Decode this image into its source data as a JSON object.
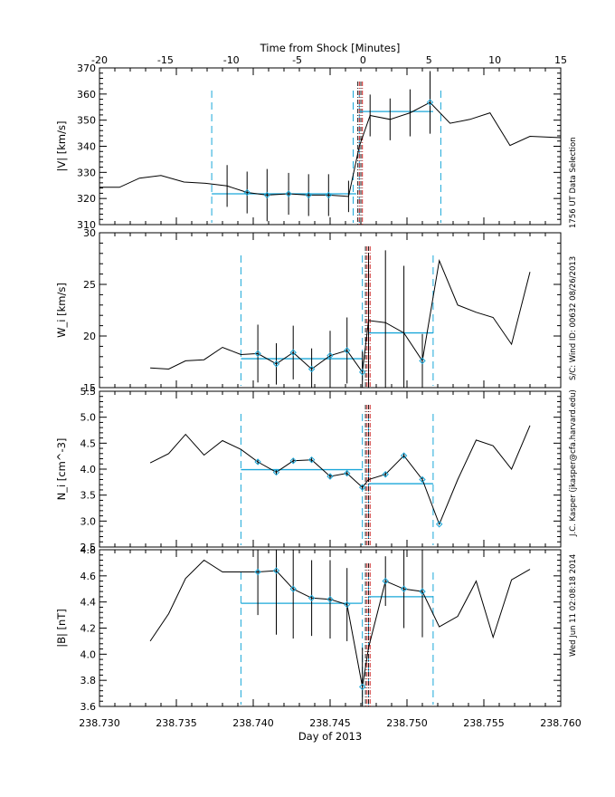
{
  "chart_data": {
    "type": "line",
    "top_axis": {
      "label": "Time from Shock [Minutes]",
      "range": [
        -20,
        15
      ],
      "ticks": [
        -20,
        -15,
        -10,
        -5,
        0,
        5,
        10,
        15
      ]
    },
    "bottom_axis": {
      "label": "Day of 2013",
      "range": [
        238.73,
        238.76
      ],
      "ticks": [
        "238.730",
        "238.735",
        "238.740",
        "238.745",
        "238.750",
        "238.755",
        "238.760"
      ]
    },
    "side_annotations": [
      "1756 UT Data Selection",
      "S/C: Wind ID: 00632 08/26/2013",
      "J.C. Kasper (jkasper@cfa.harvard.edu)",
      "Wed Jun 11 02:08:18 2014"
    ],
    "colors": {
      "data": "#000000",
      "average": "#1aa7d9",
      "window": "#1aa7d9",
      "shock": "#cc2222",
      "shock_alt": "#222222"
    },
    "panels": [
      {
        "ylabel": "|V| [km/s]",
        "ylim": [
          310,
          370
        ],
        "yticks": [
          "310",
          "320",
          "330",
          "340",
          "350",
          "360",
          "370"
        ],
        "line_x": [
          238.73,
          238.7313,
          238.7326,
          238.734,
          238.7355,
          238.7369,
          238.7383,
          238.7396,
          238.7409,
          238.7423,
          238.7436,
          238.7449,
          238.7462,
          238.7469,
          238.7476,
          238.7489,
          238.7502,
          238.7515,
          238.7528,
          238.7541,
          238.7554,
          238.7567,
          238.758,
          238.76
        ],
        "line_y": [
          324.3,
          324.3,
          327.8,
          328.8,
          326.3,
          325.8,
          324.8,
          322.3,
          321.3,
          321.8,
          321.3,
          321.3,
          320.8,
          340.0,
          351.8,
          350.3,
          352.8,
          356.8,
          348.8,
          350.3,
          352.8,
          340.3,
          343.8,
          343.3
        ],
        "err_x": [
          238.7383,
          238.7396,
          238.7409,
          238.7423,
          238.7436,
          238.7449,
          238.7462,
          238.7476,
          238.7489,
          238.7502,
          238.7515
        ],
        "err_y": [
          324.8,
          322.3,
          321.3,
          321.8,
          321.3,
          321.3,
          320.8,
          351.8,
          350.3,
          352.8,
          356.8
        ],
        "err_size": [
          8,
          8,
          10,
          8,
          8,
          8,
          6,
          8,
          8,
          9,
          12
        ],
        "markers_x": [
          238.7396,
          238.7409,
          238.7423,
          238.7436,
          238.7449,
          238.7515
        ],
        "markers_y": [
          322.3,
          321.3,
          321.8,
          321.3,
          321.3,
          356.8
        ],
        "avg_pre": {
          "x0": 238.7373,
          "x1": 238.7467,
          "y": 321.8
        },
        "avg_post": {
          "x0": 238.7469,
          "x1": 238.7517,
          "y": 353.3
        },
        "window_lines": [
          238.7373,
          238.7465,
          238.7469,
          238.7522
        ],
        "shock_lines": [
          238.7468,
          238.7469,
          238.747,
          238.7471
        ]
      },
      {
        "ylabel": "W_i [km/s]",
        "ylim": [
          15,
          30
        ],
        "yticks": [
          "15",
          "20",
          "25",
          "30"
        ],
        "line_x": [
          238.7333,
          238.7345,
          238.7356,
          238.7368,
          238.738,
          238.7392,
          238.7403,
          238.7415,
          238.7426,
          238.7438,
          238.745,
          238.7461,
          238.7471,
          238.7475,
          238.7486,
          238.7498,
          238.751,
          238.7521,
          238.7533,
          238.7545,
          238.7556,
          238.7568,
          238.758
        ],
        "line_y": [
          16.9,
          16.8,
          17.6,
          17.7,
          18.9,
          18.2,
          18.3,
          17.3,
          18.4,
          16.8,
          18.1,
          18.6,
          16.5,
          21.5,
          21.3,
          20.3,
          17.6,
          27.3,
          23.0,
          22.3,
          21.8,
          19.2,
          26.2
        ],
        "err_x": [
          238.7403,
          238.7415,
          238.7426,
          238.7438,
          238.745,
          238.7461,
          238.7471,
          238.7475,
          238.7486,
          238.7498,
          238.751
        ],
        "err_y": [
          18.3,
          17.3,
          18.4,
          16.8,
          18.1,
          18.6,
          16.5,
          21.5,
          21.3,
          20.3,
          17.6
        ],
        "err_size": [
          2.8,
          2.0,
          2.6,
          2.0,
          2.4,
          3.2,
          2.0,
          6.5,
          7.0,
          6.5,
          2.6
        ],
        "markers_x": [
          238.7403,
          238.7415,
          238.7426,
          238.7438,
          238.745,
          238.7461,
          238.7471,
          238.751
        ],
        "markers_y": [
          18.3,
          17.3,
          18.4,
          16.8,
          18.1,
          18.6,
          16.5,
          17.6
        ],
        "avg_pre": {
          "x0": 238.7392,
          "x1": 238.7471,
          "y": 17.8
        },
        "avg_post": {
          "x0": 238.7475,
          "x1": 238.7517,
          "y": 20.3
        },
        "window_lines": [
          238.7392,
          238.7471,
          238.7475,
          238.7517
        ],
        "shock_lines": [
          238.7473,
          238.7474,
          238.7475,
          238.7476
        ]
      },
      {
        "ylabel": "N_i [cm^-3]",
        "ylim": [
          2.5,
          5.5
        ],
        "yticks": [
          "2.5",
          "3.0",
          "3.5",
          "4.0",
          "4.5",
          "5.0",
          "5.5"
        ],
        "line_x": [
          238.7333,
          238.7345,
          238.7356,
          238.7368,
          238.738,
          238.7392,
          238.7403,
          238.7415,
          238.7426,
          238.7438,
          238.745,
          238.7461,
          238.7471,
          238.7475,
          238.7486,
          238.7498,
          238.751,
          238.7521,
          238.7533,
          238.7545,
          238.7556,
          238.7568,
          238.758
        ],
        "line_y": [
          4.12,
          4.3,
          4.67,
          4.27,
          4.55,
          4.38,
          4.14,
          3.94,
          4.16,
          4.18,
          3.86,
          3.92,
          3.65,
          3.8,
          3.9,
          4.26,
          3.8,
          2.94,
          3.8,
          4.56,
          4.45,
          4.0,
          4.84
        ],
        "err_x": [
          238.7403,
          238.7415,
          238.7426,
          238.7438,
          238.745,
          238.7461,
          238.7471,
          238.7475,
          238.7486,
          238.7498,
          238.751
        ],
        "err_y": [
          4.14,
          3.94,
          4.16,
          4.18,
          3.86,
          3.92,
          3.65,
          3.8,
          3.9,
          4.26,
          3.8
        ],
        "err_size": [
          0.05,
          0.04,
          0.04,
          0.04,
          0.04,
          0.04,
          0.04,
          0.04,
          0.04,
          0.04,
          0.04
        ],
        "markers_x": [
          238.7403,
          238.7415,
          238.7426,
          238.7438,
          238.745,
          238.7461,
          238.7471,
          238.7486,
          238.7498,
          238.751,
          238.7521
        ],
        "markers_y": [
          4.14,
          3.94,
          4.16,
          4.18,
          3.86,
          3.92,
          3.65,
          3.9,
          4.26,
          3.8,
          2.94
        ],
        "avg_pre": {
          "x0": 238.7392,
          "x1": 238.7471,
          "y": 3.99
        },
        "avg_post": {
          "x0": 238.7475,
          "x1": 238.7517,
          "y": 3.72
        },
        "window_lines": [
          238.7392,
          238.7471,
          238.7475,
          238.7517
        ],
        "shock_lines": [
          238.7473,
          238.7474,
          238.7475,
          238.7476
        ]
      },
      {
        "ylabel": "|B| [nT]",
        "ylim": [
          3.6,
          4.8
        ],
        "yticks": [
          "3.6",
          "3.8",
          "4.0",
          "4.2",
          "4.4",
          "4.6",
          "4.8"
        ],
        "line_x": [
          238.7333,
          238.7345,
          238.7356,
          238.7368,
          238.738,
          238.7392,
          238.7403,
          238.7415,
          238.7426,
          238.7438,
          238.745,
          238.7461,
          238.7471,
          238.7475,
          238.7486,
          238.7498,
          238.751,
          238.7521,
          238.7533,
          238.7545,
          238.7556,
          238.7568,
          238.758
        ],
        "line_y": [
          4.1,
          4.31,
          4.58,
          4.72,
          4.63,
          4.63,
          4.63,
          4.64,
          4.5,
          4.43,
          4.42,
          4.38,
          3.75,
          4.05,
          4.56,
          4.5,
          4.48,
          4.21,
          4.29,
          4.56,
          4.13,
          4.57,
          4.65
        ],
        "err_x": [
          238.7403,
          238.7415,
          238.7426,
          238.7438,
          238.745,
          238.7461,
          238.7471,
          238.7486,
          238.7498,
          238.751
        ],
        "err_y": [
          4.63,
          4.64,
          4.5,
          4.43,
          4.42,
          4.38,
          3.75,
          4.56,
          4.5,
          4.48
        ],
        "err_size": [
          0.33,
          0.49,
          0.38,
          0.29,
          0.3,
          0.28,
          0.3,
          0.19,
          0.3,
          0.35
        ],
        "markers_x": [
          238.7403,
          238.7415,
          238.7426,
          238.7438,
          238.745,
          238.7461,
          238.7471,
          238.7486,
          238.7498,
          238.751
        ],
        "markers_y": [
          4.63,
          4.64,
          4.5,
          4.43,
          4.42,
          4.38,
          3.75,
          4.56,
          4.5,
          4.48
        ],
        "avg_pre": {
          "x0": 238.7392,
          "x1": 238.7471,
          "y": 4.39
        },
        "avg_post": {
          "x0": 238.7475,
          "x1": 238.7517,
          "y": 4.44
        },
        "window_lines": [
          238.7392,
          238.7471,
          238.7475,
          238.7517
        ],
        "shock_lines": [
          238.7473,
          238.7474,
          238.7475,
          238.7476
        ]
      }
    ]
  }
}
